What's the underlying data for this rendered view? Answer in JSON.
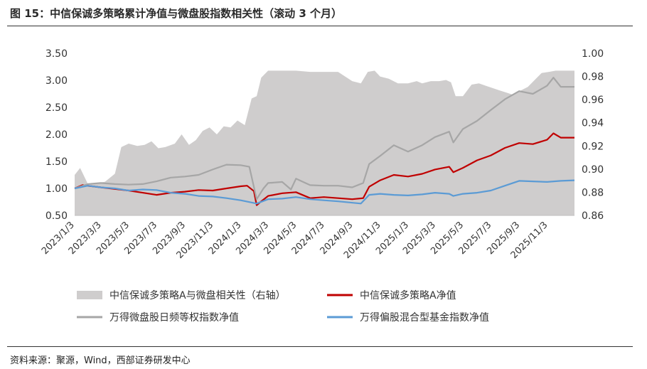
{
  "header": {
    "title": "图 15：中信保诚多策略累计净值与微盘股指数相关性（滚动 3 个月）"
  },
  "footer": {
    "source": "资料来源：聚源，Wind，西部证券研发中心"
  },
  "chart_data": {
    "type": "line",
    "x_tick_labels": [
      "2023/1/3",
      "2023/3/3",
      "2023/5/3",
      "2023/7/3",
      "2023/9/3",
      "2023/11/3",
      "2024/1/3",
      "2024/3/3",
      "2024/5/3",
      "2024/7/3",
      "2024/9/3",
      "2024/11/3",
      "2025/1/3",
      "2025/3/3",
      "2025/5/3",
      "2025/7/3",
      "2025/9/3",
      "2025/11/3"
    ],
    "x_range": [
      "2023-01-03",
      "2025-12-31"
    ],
    "y_left": {
      "ticks": [
        "0.50",
        "1.00",
        "1.50",
        "2.00",
        "2.50",
        "3.00",
        "3.50"
      ],
      "range": [
        0.5,
        3.5
      ]
    },
    "y_right": {
      "ticks": [
        "0.86",
        "0.88",
        "0.90",
        "0.92",
        "0.94",
        "0.96",
        "0.98",
        "1.00"
      ],
      "range": [
        0.86,
        1.0
      ]
    },
    "series": [
      {
        "name": "中信保诚多策略A与微盘相关性（右轴）",
        "kind": "area",
        "axis": "right",
        "color": "#cfcdcd",
        "points": [
          [
            "2023-01-03",
            0.895
          ],
          [
            "2023-01-15",
            0.901
          ],
          [
            "2023-02-01",
            0.887
          ],
          [
            "2023-02-20",
            0.888
          ],
          [
            "2023-03-10",
            0.889
          ],
          [
            "2023-04-01",
            0.896
          ],
          [
            "2023-04-15",
            0.919
          ],
          [
            "2023-05-01",
            0.922
          ],
          [
            "2023-05-20",
            0.92
          ],
          [
            "2023-06-05",
            0.921
          ],
          [
            "2023-06-20",
            0.924
          ],
          [
            "2023-07-05",
            0.918
          ],
          [
            "2023-07-20",
            0.919
          ],
          [
            "2023-08-10",
            0.922
          ],
          [
            "2023-08-25",
            0.93
          ],
          [
            "2023-09-10",
            0.921
          ],
          [
            "2023-09-25",
            0.925
          ],
          [
            "2023-10-10",
            0.933
          ],
          [
            "2023-10-25",
            0.936
          ],
          [
            "2023-11-10",
            0.93
          ],
          [
            "2023-11-25",
            0.937
          ],
          [
            "2023-12-10",
            0.936
          ],
          [
            "2023-12-25",
            0.942
          ],
          [
            "2024-01-10",
            0.938
          ],
          [
            "2024-01-25",
            0.961
          ],
          [
            "2024-02-05",
            0.963
          ],
          [
            "2024-02-15",
            0.979
          ],
          [
            "2024-03-01",
            0.985
          ],
          [
            "2024-04-01",
            0.985
          ],
          [
            "2024-05-01",
            0.985
          ],
          [
            "2024-06-01",
            0.984
          ],
          [
            "2024-07-01",
            0.984
          ],
          [
            "2024-08-01",
            0.984
          ],
          [
            "2024-09-01",
            0.976
          ],
          [
            "2024-09-20",
            0.974
          ],
          [
            "2024-10-05",
            0.984
          ],
          [
            "2024-10-20",
            0.985
          ],
          [
            "2024-11-01",
            0.98
          ],
          [
            "2024-11-20",
            0.978
          ],
          [
            "2024-12-10",
            0.974
          ],
          [
            "2025-01-01",
            0.974
          ],
          [
            "2025-01-20",
            0.976
          ],
          [
            "2025-02-01",
            0.974
          ],
          [
            "2025-02-20",
            0.976
          ],
          [
            "2025-03-10",
            0.976
          ],
          [
            "2025-03-25",
            0.977
          ],
          [
            "2025-04-05",
            0.975
          ],
          [
            "2025-04-15",
            0.963
          ],
          [
            "2025-05-01",
            0.963
          ],
          [
            "2025-05-20",
            0.973
          ],
          [
            "2025-06-05",
            0.974
          ],
          [
            "2025-06-20",
            0.972
          ],
          [
            "2025-07-05",
            0.97
          ],
          [
            "2025-07-20",
            0.968
          ],
          [
            "2025-08-05",
            0.966
          ],
          [
            "2025-08-20",
            0.964
          ],
          [
            "2025-09-05",
            0.968
          ],
          [
            "2025-09-20",
            0.971
          ],
          [
            "2025-10-05",
            0.977
          ],
          [
            "2025-10-20",
            0.983
          ],
          [
            "2025-11-05",
            0.984
          ],
          [
            "2025-11-20",
            0.985
          ],
          [
            "2025-12-31",
            0.985
          ]
        ]
      },
      {
        "name": "中信保诚多策略A净值",
        "kind": "line",
        "axis": "left",
        "color": "#c00000",
        "points": [
          [
            "2023-01-03",
            1.0
          ],
          [
            "2023-01-20",
            1.06
          ],
          [
            "2023-02-10",
            1.04
          ],
          [
            "2023-03-01",
            1.02
          ],
          [
            "2023-04-01",
            0.99
          ],
          [
            "2023-05-01",
            0.96
          ],
          [
            "2023-06-01",
            0.92
          ],
          [
            "2023-07-01",
            0.88
          ],
          [
            "2023-08-01",
            0.92
          ],
          [
            "2023-09-01",
            0.94
          ],
          [
            "2023-10-01",
            0.97
          ],
          [
            "2023-11-01",
            0.96
          ],
          [
            "2023-12-01",
            1.0
          ],
          [
            "2024-01-01",
            1.04
          ],
          [
            "2024-01-15",
            1.05
          ],
          [
            "2024-01-30",
            0.95
          ],
          [
            "2024-02-05",
            0.69
          ],
          [
            "2024-02-15",
            0.76
          ],
          [
            "2024-03-01",
            0.86
          ],
          [
            "2024-04-01",
            0.91
          ],
          [
            "2024-05-01",
            0.93
          ],
          [
            "2024-06-01",
            0.82
          ],
          [
            "2024-07-01",
            0.84
          ],
          [
            "2024-08-01",
            0.82
          ],
          [
            "2024-09-01",
            0.8
          ],
          [
            "2024-09-25",
            0.82
          ],
          [
            "2024-10-08",
            1.03
          ],
          [
            "2024-11-01",
            1.15
          ],
          [
            "2024-12-01",
            1.25
          ],
          [
            "2025-01-01",
            1.22
          ],
          [
            "2025-02-01",
            1.27
          ],
          [
            "2025-03-01",
            1.35
          ],
          [
            "2025-04-01",
            1.4
          ],
          [
            "2025-04-10",
            1.3
          ],
          [
            "2025-05-01",
            1.38
          ],
          [
            "2025-06-01",
            1.52
          ],
          [
            "2025-07-01",
            1.61
          ],
          [
            "2025-08-01",
            1.75
          ],
          [
            "2025-09-01",
            1.84
          ],
          [
            "2025-10-01",
            1.82
          ],
          [
            "2025-11-01",
            1.9
          ],
          [
            "2025-11-15",
            2.02
          ],
          [
            "2025-12-01",
            1.94
          ],
          [
            "2025-12-31",
            1.94
          ]
        ]
      },
      {
        "name": "万得微盘股日频等权指数净值",
        "kind": "line",
        "axis": "left",
        "color": "#a6a6a6",
        "points": [
          [
            "2023-01-03",
            1.0
          ],
          [
            "2023-02-01",
            1.08
          ],
          [
            "2023-03-01",
            1.1
          ],
          [
            "2023-04-01",
            1.08
          ],
          [
            "2023-05-01",
            1.07
          ],
          [
            "2023-06-01",
            1.08
          ],
          [
            "2023-07-01",
            1.13
          ],
          [
            "2023-08-01",
            1.2
          ],
          [
            "2023-09-01",
            1.22
          ],
          [
            "2023-10-01",
            1.25
          ],
          [
            "2023-11-01",
            1.35
          ],
          [
            "2023-12-01",
            1.44
          ],
          [
            "2024-01-01",
            1.43
          ],
          [
            "2024-01-20",
            1.4
          ],
          [
            "2024-02-05",
            0.8
          ],
          [
            "2024-02-20",
            1.0
          ],
          [
            "2024-03-01",
            1.1
          ],
          [
            "2024-04-01",
            1.12
          ],
          [
            "2024-04-20",
            0.98
          ],
          [
            "2024-05-01",
            1.18
          ],
          [
            "2024-06-01",
            1.06
          ],
          [
            "2024-07-01",
            1.05
          ],
          [
            "2024-08-01",
            1.05
          ],
          [
            "2024-09-01",
            1.02
          ],
          [
            "2024-09-25",
            1.1
          ],
          [
            "2024-10-08",
            1.45
          ],
          [
            "2024-11-01",
            1.6
          ],
          [
            "2024-12-01",
            1.8
          ],
          [
            "2025-01-01",
            1.68
          ],
          [
            "2025-02-01",
            1.8
          ],
          [
            "2025-03-01",
            1.95
          ],
          [
            "2025-04-01",
            2.05
          ],
          [
            "2025-04-10",
            1.85
          ],
          [
            "2025-05-01",
            2.1
          ],
          [
            "2025-06-01",
            2.25
          ],
          [
            "2025-07-01",
            2.45
          ],
          [
            "2025-08-01",
            2.65
          ],
          [
            "2025-09-01",
            2.8
          ],
          [
            "2025-10-01",
            2.75
          ],
          [
            "2025-11-01",
            2.9
          ],
          [
            "2025-11-15",
            3.05
          ],
          [
            "2025-12-01",
            2.88
          ],
          [
            "2025-12-31",
            2.88
          ]
        ]
      },
      {
        "name": "万得偏股混合型基金指数净值",
        "kind": "line",
        "axis": "left",
        "color": "#5b9bd5",
        "points": [
          [
            "2023-01-03",
            1.0
          ],
          [
            "2023-02-01",
            1.05
          ],
          [
            "2023-03-01",
            1.02
          ],
          [
            "2023-04-01",
            1.0
          ],
          [
            "2023-05-01",
            0.96
          ],
          [
            "2023-06-01",
            0.98
          ],
          [
            "2023-07-01",
            0.97
          ],
          [
            "2023-08-01",
            0.92
          ],
          [
            "2023-09-01",
            0.9
          ],
          [
            "2023-10-01",
            0.86
          ],
          [
            "2023-11-01",
            0.85
          ],
          [
            "2023-12-01",
            0.82
          ],
          [
            "2024-01-01",
            0.78
          ],
          [
            "2024-02-05",
            0.72
          ],
          [
            "2024-03-01",
            0.8
          ],
          [
            "2024-04-01",
            0.81
          ],
          [
            "2024-05-01",
            0.84
          ],
          [
            "2024-06-01",
            0.8
          ],
          [
            "2024-07-01",
            0.78
          ],
          [
            "2024-08-01",
            0.76
          ],
          [
            "2024-09-20",
            0.72
          ],
          [
            "2024-10-08",
            0.88
          ],
          [
            "2024-11-01",
            0.9
          ],
          [
            "2024-12-01",
            0.88
          ],
          [
            "2025-01-01",
            0.87
          ],
          [
            "2025-02-01",
            0.89
          ],
          [
            "2025-03-01",
            0.92
          ],
          [
            "2025-04-01",
            0.9
          ],
          [
            "2025-04-10",
            0.86
          ],
          [
            "2025-05-01",
            0.9
          ],
          [
            "2025-06-01",
            0.92
          ],
          [
            "2025-07-01",
            0.96
          ],
          [
            "2025-08-01",
            1.05
          ],
          [
            "2025-09-01",
            1.14
          ],
          [
            "2025-10-01",
            1.13
          ],
          [
            "2025-11-01",
            1.12
          ],
          [
            "2025-12-01",
            1.14
          ],
          [
            "2025-12-31",
            1.15
          ]
        ]
      }
    ],
    "legend": [
      {
        "label": "中信保诚多策略A与微盘相关性（右轴）",
        "swatch": "area",
        "color": "#cfcdcd"
      },
      {
        "label": "中信保诚多策略A净值",
        "swatch": "line",
        "color": "#c00000"
      },
      {
        "label": "万得微盘股日频等权指数净值",
        "swatch": "line",
        "color": "#a6a6a6"
      },
      {
        "label": "万得偏股混合型基金指数净值",
        "swatch": "line",
        "color": "#5b9bd5"
      }
    ],
    "legend_position": "bottom",
    "grid": false
  }
}
